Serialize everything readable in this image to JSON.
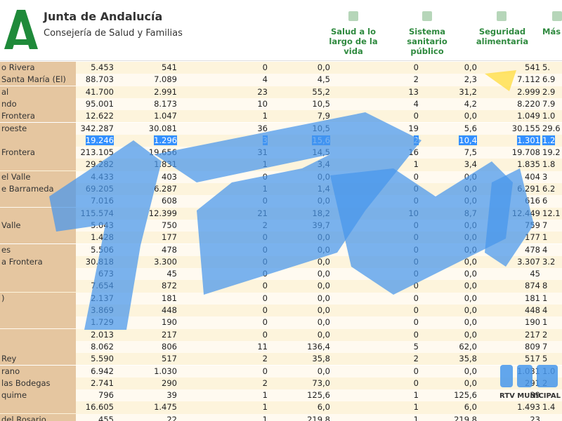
{
  "header": {
    "title": "Junta de Andalucía",
    "subtitle": "Consejería de Salud y Familias",
    "nav": [
      "Salud a lo largo de la vida",
      "Sistema sanitario público",
      "Seguridad alimentaria",
      "Más"
    ]
  },
  "table": {
    "rows": [
      [
        "o Rivera",
        "5.453",
        "541",
        "0",
        "0,0",
        "0",
        "0,0",
        "541",
        "5."
      ],
      [
        "Santa María (El)",
        "88.703",
        "7.089",
        "4",
        "4,5",
        "2",
        "2,3",
        "7.112",
        "6.9"
      ],
      [
        "al",
        "41.700",
        "2.991",
        "23",
        "55,2",
        "13",
        "31,2",
        "2.999",
        "2.9"
      ],
      [
        "ndo",
        "95.001",
        "8.173",
        "10",
        "10,5",
        "4",
        "4,2",
        "8.220",
        "7.9"
      ],
      [
        "Frontera",
        "12.622",
        "1.047",
        "1",
        "7,9",
        "0",
        "0,0",
        "1.049",
        "1.0"
      ],
      [
        "roeste",
        "342.287",
        "30.081",
        "36",
        "10,5",
        "19",
        "5,6",
        "30.155",
        "29.6"
      ],
      [
        null,
        "19.246",
        "1.296",
        "3",
        "15,6",
        "2",
        "10,4",
        "1.301",
        "1.2"
      ],
      [
        "Frontera",
        "213.105",
        "19.656",
        "31",
        "14,5",
        "16",
        "7,5",
        "19.708",
        "19.2"
      ],
      [
        null,
        "29.282",
        "1.831",
        "1",
        "3,4",
        "1",
        "3,4",
        "1.835",
        "1.8"
      ],
      [
        "el Valle",
        "4.433",
        "403",
        "0",
        "0,0",
        "0",
        "0,0",
        "404",
        "3"
      ],
      [
        "e Barrameda",
        "69.205",
        "6.287",
        "1",
        "1,4",
        "0",
        "0,0",
        "6.291",
        "6.2"
      ],
      [
        null,
        "7.016",
        "608",
        "0",
        "0,0",
        "0",
        "0,0",
        "616",
        "6"
      ],
      [
        null,
        "115.574",
        "12.399",
        "21",
        "18,2",
        "10",
        "8,7",
        "12.449",
        "12.1"
      ],
      [
        "Valle",
        "5.043",
        "750",
        "2",
        "39,7",
        "0",
        "0,0",
        "759",
        "7"
      ],
      [
        null,
        "1.428",
        "177",
        "0",
        "0,0",
        "0",
        "0,0",
        "177",
        "1"
      ],
      [
        "es",
        "5.506",
        "478",
        "0",
        "0,0",
        "0",
        "0,0",
        "478",
        "4"
      ],
      [
        "a Frontera",
        "30.818",
        "3.300",
        "0",
        "0,0",
        "0",
        "0,0",
        "3.307",
        "3.2"
      ],
      [
        null,
        "673",
        "45",
        "0",
        "0,0",
        "0",
        "0,0",
        "45",
        null
      ],
      [
        null,
        "7.654",
        "872",
        "0",
        "0,0",
        "0",
        "0,0",
        "874",
        "8"
      ],
      [
        ")",
        "2.137",
        "181",
        "0",
        "0,0",
        "0",
        "0,0",
        "181",
        "1"
      ],
      [
        null,
        "3.869",
        "448",
        "0",
        "0,0",
        "0",
        "0,0",
        "448",
        "4"
      ],
      [
        null,
        "1.729",
        "190",
        "0",
        "0,0",
        "0",
        "0,0",
        "190",
        "1"
      ],
      [
        null,
        "2.013",
        "217",
        "0",
        "0,0",
        "0",
        "0,0",
        "217",
        "2"
      ],
      [
        null,
        "8.062",
        "806",
        "11",
        "136,4",
        "5",
        "62,0",
        "809",
        "7"
      ],
      [
        "Rey",
        "5.590",
        "517",
        "2",
        "35,8",
        "2",
        "35,8",
        "517",
        "5"
      ],
      [
        "rano",
        "6.942",
        "1.030",
        "0",
        "0,0",
        "0",
        "0,0",
        "1.031",
        "1.0"
      ],
      [
        "las Bodegas",
        "2.741",
        "290",
        "2",
        "73,0",
        "0",
        "0,0",
        "291",
        "2"
      ],
      [
        "quime",
        "796",
        "39",
        "1",
        "125,6",
        "1",
        "125,6",
        "39",
        null
      ],
      [
        null,
        "16.605",
        "1.475",
        "1",
        "6,0",
        "1",
        "6,0",
        "1.493",
        "1.4"
      ],
      [
        "del Rosario",
        "455",
        "22",
        "1",
        "219,8",
        "1",
        "219,8",
        "23",
        null
      ]
    ]
  },
  "watermark": {
    "text": "RTV MUNICIPAL DE CH"
  }
}
